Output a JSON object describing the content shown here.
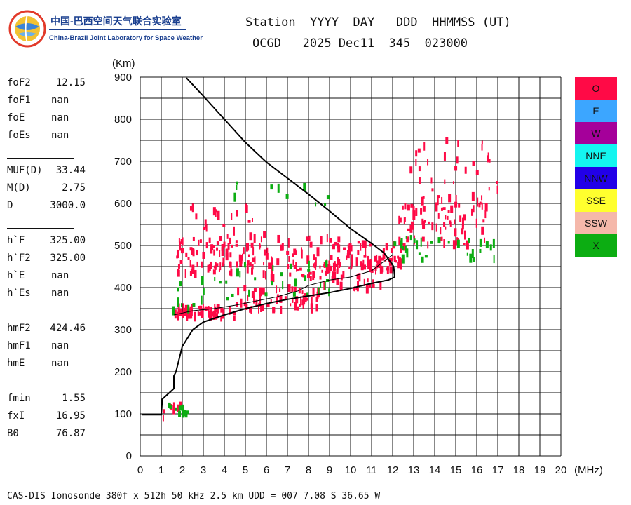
{
  "logo": {
    "cn": "中国-巴西空间天气联合实验室",
    "en": "China-Brazil Joint Laboratory for Space Weather"
  },
  "header": {
    "row1": "Station  YYYY  DAY   DDD  HHMMSS (UT)",
    "row2": "OCGD   2025 Dec11  345  023000"
  },
  "params": {
    "group1": [
      {
        "label": "foF2",
        "value": "12.15"
      },
      {
        "label": "foF1",
        "value": "nan"
      },
      {
        "label": "foE",
        "value": "nan"
      },
      {
        "label": "foEs",
        "value": "nan"
      }
    ],
    "group2": [
      {
        "label": "MUF(D)",
        "value": "33.44"
      },
      {
        "label": "M(D)",
        "value": "2.75"
      },
      {
        "label": "D",
        "value": "3000.0"
      }
    ],
    "group3": [
      {
        "label": "h`F",
        "value": "325.00"
      },
      {
        "label": "h`F2",
        "value": "325.00"
      },
      {
        "label": "h`E",
        "value": "nan"
      },
      {
        "label": "h`Es",
        "value": "nan"
      }
    ],
    "group4": [
      {
        "label": "hmF2",
        "value": "424.46"
      },
      {
        "label": "hmF1",
        "value": "nan"
      },
      {
        "label": "hmE",
        "value": "nan"
      }
    ],
    "group5": [
      {
        "label": "fmin",
        "value": "1.55"
      },
      {
        "label": "fxI",
        "value": "16.95"
      },
      {
        "label": "B0",
        "value": "76.87"
      }
    ]
  },
  "legend": [
    {
      "label": "O",
      "color": "#ff0a46",
      "text_color": "#111111"
    },
    {
      "label": "E",
      "color": "#3ca6ff",
      "text_color": "#111111"
    },
    {
      "label": "W",
      "color": "#a5009a",
      "text_color": "#111111"
    },
    {
      "label": "NNE",
      "color": "#14f5f0",
      "text_color": "#111111"
    },
    {
      "label": "NNW",
      "color": "#2200e8",
      "text_color": "#111111"
    },
    {
      "label": "SSE",
      "color": "#ffff2e",
      "text_color": "#111111"
    },
    {
      "label": "SSW",
      "color": "#f5b8aa",
      "text_color": "#111111"
    },
    {
      "label": "X",
      "color": "#0cad12",
      "text_color": "#111111"
    }
  ],
  "footer": "CAS-DIS Ionosonde 380f x 512h 50 kHz 2.5 km UDD = 007 7.08 S 36.65 W",
  "chart_data": {
    "type": "scatter",
    "xlabel": "(MHz)",
    "ylabel": "(Km)",
    "xlim": [
      0,
      20
    ],
    "ylim": [
      0,
      900
    ],
    "x_ticks": [
      0,
      1,
      2,
      3,
      4,
      5,
      6,
      7,
      8,
      9,
      10,
      11,
      12,
      13,
      14,
      15,
      16,
      17,
      18,
      19,
      20
    ],
    "y_ticks": [
      0,
      100,
      200,
      300,
      400,
      500,
      600,
      700,
      800,
      900
    ],
    "grid": true,
    "legend_position": "right",
    "series": [
      {
        "name": "O",
        "color": "#ff0a46",
        "clusters": [
          {
            "f_range": [
              1.5,
              4.5
            ],
            "h_range": [
              325,
              355
            ],
            "density": 60
          },
          {
            "f_range": [
              4.5,
              8.5
            ],
            "h_range": [
              345,
              400
            ],
            "density": 60
          },
          {
            "f_range": [
              8.5,
              11.5
            ],
            "h_range": [
              395,
              470
            ],
            "density": 45
          },
          {
            "f_range": [
              1.7,
              5.5
            ],
            "h_range": [
              430,
              520
            ],
            "density": 90
          },
          {
            "f_range": [
              5.5,
              9.5
            ],
            "h_range": [
              420,
              520
            ],
            "density": 80
          },
          {
            "f_range": [
              9.5,
              12.5
            ],
            "h_range": [
              440,
              510
            ],
            "density": 60
          },
          {
            "f_range": [
              12.2,
              16.5
            ],
            "h_range": [
              500,
              620
            ],
            "density": 80
          },
          {
            "f_range": [
              12.5,
              17.0
            ],
            "h_range": [
              620,
              750
            ],
            "density": 28
          },
          {
            "f_range": [
              2.0,
              6.0
            ],
            "h_range": [
              520,
              600
            ],
            "density": 22
          },
          {
            "f_range": [
              1.0,
              2.1
            ],
            "h_range": [
              90,
              120
            ],
            "density": 8
          }
        ]
      },
      {
        "name": "X",
        "color": "#0cad12",
        "clusters": [
          {
            "f_range": [
              1.5,
              4.5
            ],
            "h_range": [
              340,
              420
            ],
            "density": 14
          },
          {
            "f_range": [
              4.0,
              9.0
            ],
            "h_range": [
              380,
              460
            ],
            "density": 24
          },
          {
            "f_range": [
              12.0,
              17.0
            ],
            "h_range": [
              460,
              520
            ],
            "density": 30
          },
          {
            "f_range": [
              3.0,
              9.0
            ],
            "h_range": [
              580,
              650
            ],
            "density": 10
          },
          {
            "f_range": [
              1.3,
              2.2
            ],
            "h_range": [
              90,
              125
            ],
            "density": 10
          }
        ]
      }
    ],
    "profile_curve": {
      "name": "virtual height trace",
      "x": [
        0.1,
        1.0,
        1.05,
        1.6,
        1.6,
        1.7,
        2.0,
        2.5,
        3.0,
        4.0,
        5.0,
        6.0,
        7.0,
        8.0,
        9.0,
        10.0,
        11.0,
        11.8,
        12.1,
        12.05,
        11.6,
        11.0,
        10.0,
        9.0,
        8.0,
        7.0,
        6.0,
        5.0,
        4.0,
        3.0,
        2.2
      ],
      "y": [
        98,
        98,
        135,
        160,
        190,
        200,
        260,
        300,
        318,
        335,
        350,
        362,
        372,
        380,
        388,
        398,
        410,
        418,
        425,
        450,
        482,
        505,
        540,
        582,
        622,
        660,
        698,
        745,
        800,
        855,
        898
      ]
    },
    "true_height_curve": {
      "name": "true height profile",
      "x": [
        1.6,
        2.5,
        3.5,
        4.5,
        5.5,
        6.5,
        7.0,
        7.5,
        8.0,
        9.0,
        10.0,
        11.0,
        12.0
      ],
      "y": [
        335,
        345,
        350,
        358,
        368,
        378,
        385,
        392,
        405,
        418,
        425,
        440,
        478
      ]
    }
  }
}
